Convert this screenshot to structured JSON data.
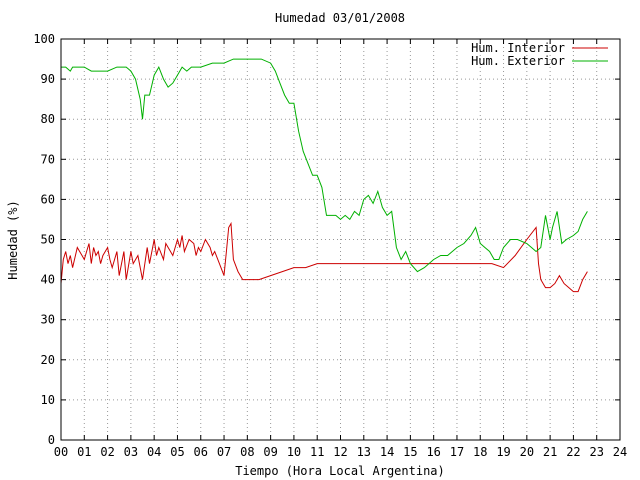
{
  "chart_data": {
    "type": "line",
    "title": "Humedad 03/01/2008",
    "xlabel": "Tiempo (Hora Local Argentina)",
    "ylabel": "Humedad (%)",
    "xlim": [
      0,
      24
    ],
    "ylim": [
      0,
      100
    ],
    "x_ticks": [
      "00",
      "01",
      "02",
      "03",
      "04",
      "05",
      "06",
      "07",
      "08",
      "09",
      "10",
      "11",
      "12",
      "13",
      "14",
      "15",
      "16",
      "17",
      "18",
      "19",
      "20",
      "21",
      "22",
      "23",
      "24"
    ],
    "y_ticks": [
      "0",
      "10",
      "20",
      "30",
      "40",
      "50",
      "60",
      "70",
      "80",
      "90",
      "100"
    ],
    "grid": true,
    "legend_position": "top-right",
    "series": [
      {
        "name": "Hum. Interior",
        "color": "#cc0000",
        "x": [
          0.0,
          0.1,
          0.2,
          0.3,
          0.4,
          0.5,
          0.7,
          0.9,
          1.0,
          1.1,
          1.2,
          1.3,
          1.4,
          1.5,
          1.6,
          1.7,
          1.8,
          2.0,
          2.1,
          2.2,
          2.4,
          2.5,
          2.7,
          2.8,
          3.0,
          3.1,
          3.3,
          3.5,
          3.7,
          3.8,
          4.0,
          4.1,
          4.2,
          4.4,
          4.5,
          4.7,
          4.8,
          5.0,
          5.1,
          5.2,
          5.3,
          5.5,
          5.7,
          5.8,
          5.9,
          6.0,
          6.2,
          6.4,
          6.5,
          6.6,
          6.8,
          7.0,
          7.1,
          7.2,
          7.3,
          7.4,
          7.6,
          7.8,
          8.0,
          8.2,
          8.5,
          9.0,
          9.5,
          10.0,
          10.5,
          11.0,
          11.5,
          12.0,
          12.5,
          13.0,
          13.5,
          14.0,
          14.5,
          15.0,
          15.5,
          16.0,
          16.5,
          17.0,
          17.5,
          18.0,
          18.5,
          19.0,
          19.5,
          20.0,
          20.4,
          20.5,
          20.6,
          20.8,
          21.0,
          21.2,
          21.4,
          21.6,
          21.8,
          22.0,
          22.2,
          22.4,
          22.6
        ],
        "y": [
          39,
          45,
          47,
          44,
          46,
          43,
          48,
          46,
          45,
          47,
          49,
          44,
          48,
          46,
          47,
          44,
          46,
          48,
          45,
          43,
          47,
          41,
          47,
          40,
          47,
          44,
          46,
          40,
          48,
          44,
          50,
          46,
          48,
          45,
          49,
          47,
          46,
          50,
          48,
          51,
          47,
          50,
          49,
          46,
          48,
          47,
          50,
          48,
          46,
          47,
          44,
          41,
          47,
          53,
          54,
          45,
          42,
          40,
          40,
          40,
          40,
          41,
          42,
          43,
          43,
          44,
          44,
          44,
          44,
          44,
          44,
          44,
          44,
          44,
          44,
          44,
          44,
          44,
          44,
          44,
          44,
          43,
          46,
          50,
          53,
          44,
          40,
          38,
          38,
          39,
          41,
          39,
          38,
          37,
          37,
          40,
          42
        ]
      },
      {
        "name": "Hum. Exterior",
        "color": "#00b000",
        "x": [
          0.0,
          0.2,
          0.4,
          0.5,
          0.7,
          1.0,
          1.3,
          1.7,
          2.0,
          2.4,
          2.8,
          3.0,
          3.2,
          3.4,
          3.5,
          3.6,
          3.8,
          4.0,
          4.2,
          4.4,
          4.6,
          4.8,
          5.0,
          5.2,
          5.4,
          5.6,
          6.0,
          6.5,
          7.0,
          7.4,
          7.8,
          8.2,
          8.6,
          9.0,
          9.2,
          9.4,
          9.6,
          9.8,
          10.0,
          10.2,
          10.4,
          10.6,
          10.8,
          11.0,
          11.2,
          11.4,
          11.6,
          11.8,
          12.0,
          12.2,
          12.4,
          12.6,
          12.8,
          13.0,
          13.2,
          13.4,
          13.6,
          13.8,
          14.0,
          14.2,
          14.4,
          14.6,
          14.8,
          15.0,
          15.3,
          15.6,
          16.0,
          16.3,
          16.6,
          17.0,
          17.3,
          17.6,
          17.8,
          18.0,
          18.2,
          18.4,
          18.6,
          18.8,
          19.0,
          19.3,
          19.6,
          20.0,
          20.2,
          20.4,
          20.6,
          20.8,
          21.0,
          21.1,
          21.3,
          21.5,
          21.7,
          22.0,
          22.2,
          22.4,
          22.6
        ],
        "y": [
          93,
          93,
          92,
          93,
          93,
          93,
          92,
          92,
          92,
          93,
          93,
          92,
          90,
          85,
          80,
          86,
          86,
          91,
          93,
          90,
          88,
          89,
          91,
          93,
          92,
          93,
          93,
          94,
          94,
          95,
          95,
          95,
          95,
          94,
          92,
          89,
          86,
          84,
          84,
          77,
          72,
          69,
          66,
          66,
          63,
          56,
          56,
          56,
          55,
          56,
          55,
          57,
          56,
          60,
          61,
          59,
          62,
          58,
          56,
          57,
          48,
          45,
          47,
          44,
          42,
          43,
          45,
          46,
          46,
          48,
          49,
          51,
          53,
          49,
          48,
          47,
          45,
          45,
          48,
          50,
          50,
          49,
          48,
          47,
          48,
          56,
          50,
          53,
          57,
          49,
          50,
          51,
          52,
          55,
          57
        ]
      }
    ]
  }
}
